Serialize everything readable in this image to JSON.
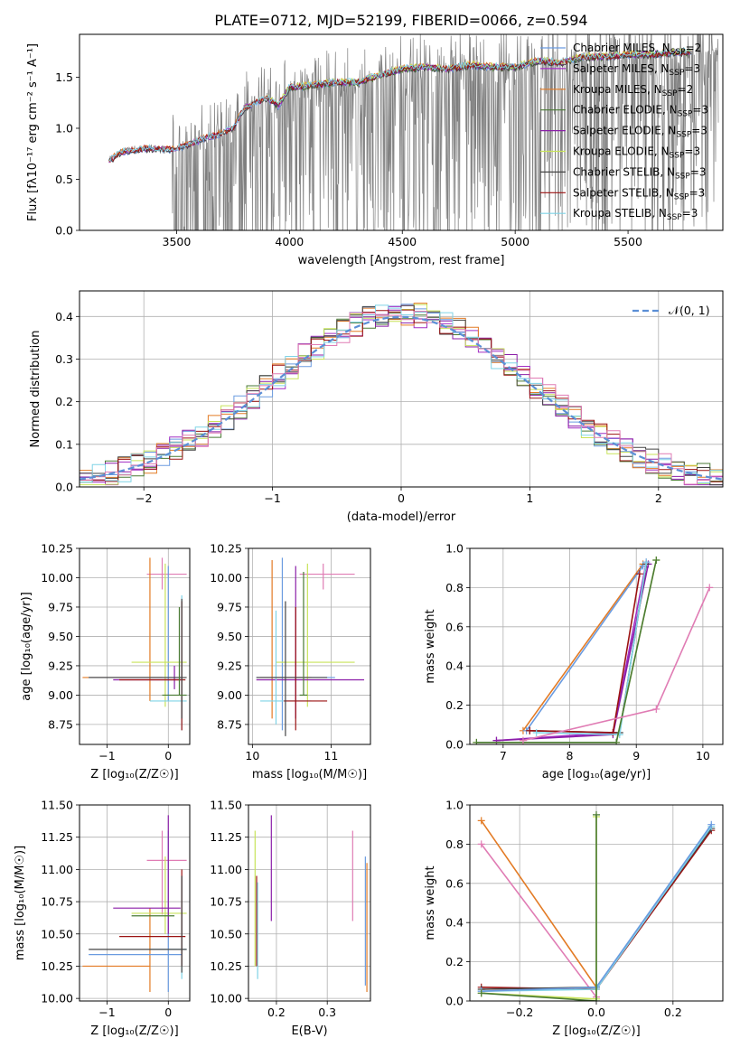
{
  "figure": {
    "title": "PLATE=0712, MJD=52199, FIBERID=0066, z=0.594"
  },
  "colors": {
    "Chabrier MILES": "#6a9be0",
    "Salpeter MILES": "#a22fc4",
    "Kroupa MILES": "#e37b25",
    "Chabrier ELODIE": "#4a7a34",
    "Salpeter ELODIE": "#8b1fa8",
    "Kroupa ELODIE": "#c8e35a",
    "Chabrier STELIB": "#444444",
    "Salpeter STELIB": "#9b1212",
    "Kroupa STELIB": "#7fd3e6",
    "pink": "#e07cb4",
    "data": "#7f7f7f",
    "normal": "#5b8fd6"
  },
  "chart_data": [
    {
      "id": "spectrum",
      "type": "line",
      "title": "PLATE=0712, MJD=52199, FIBERID=0066, z=0.594",
      "xlabel": "wavelength [Angstrom, rest frame]",
      "ylabel": "Flux [fλ10⁻¹⁷ erg cm⁻² s⁻¹ A⁻¹]",
      "xlim": [
        3070,
        5920
      ],
      "ylim": [
        0,
        1.92
      ],
      "xticks": [
        "3500",
        "4000",
        "4500",
        "5000",
        "5500"
      ],
      "yticks": [
        "0.0",
        "0.5",
        "1.0",
        "1.5"
      ],
      "legend_placement": "right",
      "legend": [
        {
          "label": "Chabrier MILES, N",
          "sub": "SSP",
          "suffix": "=2",
          "color": "Chabrier MILES"
        },
        {
          "label": "Salpeter MILES, N",
          "sub": "SSP",
          "suffix": "=3",
          "color": "Salpeter MILES"
        },
        {
          "label": "Kroupa MILES, N",
          "sub": "SSP",
          "suffix": "=2",
          "color": "Kroupa MILES"
        },
        {
          "label": "Chabrier ELODIE, N",
          "sub": "SSP",
          "suffix": "=3",
          "color": "Chabrier ELODIE"
        },
        {
          "label": "Salpeter ELODIE, N",
          "sub": "SSP",
          "suffix": "=3",
          "color": "Salpeter ELODIE"
        },
        {
          "label": "Kroupa ELODIE, N",
          "sub": "SSP",
          "suffix": "=3",
          "color": "Kroupa ELODIE"
        },
        {
          "label": "Chabrier STELIB, N",
          "sub": "SSP",
          "suffix": "=3",
          "color": "Chabrier STELIB"
        },
        {
          "label": "Salpeter STELIB, N",
          "sub": "SSP",
          "suffix": "=3",
          "color": "Salpeter STELIB"
        },
        {
          "label": "Kroupa STELIB, N",
          "sub": "SSP",
          "suffix": "=3",
          "color": "Kroupa STELIB"
        }
      ],
      "model_continuum": [
        [
          3200,
          0.68
        ],
        [
          3250,
          0.76
        ],
        [
          3300,
          0.79
        ],
        [
          3350,
          0.8
        ],
        [
          3400,
          0.8
        ],
        [
          3450,
          0.79
        ],
        [
          3500,
          0.8
        ],
        [
          3550,
          0.84
        ],
        [
          3600,
          0.88
        ],
        [
          3650,
          0.92
        ],
        [
          3700,
          0.95
        ],
        [
          3750,
          1.0
        ],
        [
          3800,
          1.2
        ],
        [
          3850,
          1.25
        ],
        [
          3900,
          1.3
        ],
        [
          3950,
          1.22
        ],
        [
          4000,
          1.4
        ],
        [
          4100,
          1.42
        ],
        [
          4200,
          1.45
        ],
        [
          4300,
          1.45
        ],
        [
          4400,
          1.52
        ],
        [
          4500,
          1.58
        ],
        [
          4600,
          1.6
        ],
        [
          4700,
          1.58
        ],
        [
          4800,
          1.62
        ],
        [
          4900,
          1.6
        ],
        [
          5000,
          1.6
        ],
        [
          5100,
          1.66
        ],
        [
          5200,
          1.64
        ],
        [
          5300,
          1.7
        ],
        [
          5400,
          1.7
        ],
        [
          5500,
          1.72
        ],
        [
          5600,
          1.72
        ],
        [
          5700,
          1.74
        ],
        [
          5780,
          1.75
        ]
      ],
      "data_noise_from": 3480
    },
    {
      "id": "residuals",
      "type": "step",
      "xlabel": "(data-model)/error",
      "ylabel": "Normed distribution",
      "xlim": [
        -2.5,
        2.5
      ],
      "ylim": [
        0,
        0.46
      ],
      "xticks": [
        "−2",
        "−1",
        "0",
        "1",
        "2"
      ],
      "yticks": [
        "0.0",
        "0.1",
        "0.2",
        "0.3",
        "0.4"
      ],
      "legend_placement": "top-right",
      "normal_label": "𝒩(0, 1)"
    },
    {
      "id": "age_vs_Z",
      "type": "errorbar",
      "xlabel": "Z [log₁₀(Z/Z☉)]",
      "ylabel": "age  [log₁₀(age/yr)]",
      "xlim": [
        -1.45,
        0.35
      ],
      "ylim": [
        8.58,
        10.25
      ],
      "xticks": [
        "−1",
        "0"
      ],
      "yticks": [
        "8.75",
        "9.00",
        "9.25",
        "9.50",
        "9.75",
        "10.00",
        "10.25"
      ],
      "points": [
        {
          "x": -0.1,
          "y": 10.03,
          "xe": [
            -0.35,
            0.3
          ],
          "ye": [
            9.9,
            10.17
          ],
          "c": "pink"
        },
        {
          "x": -0.3,
          "y": 9.15,
          "xe": [
            -1.4,
            -0.1
          ],
          "ye": [
            8.95,
            10.17
          ],
          "c": "Kroupa MILES"
        },
        {
          "x": 0.0,
          "y": 9.15,
          "xe": [
            -1.3,
            0.22
          ],
          "ye": [
            8.95,
            10.1
          ],
          "c": "Chabrier MILES"
        },
        {
          "x": -0.05,
          "y": 9.28,
          "xe": [
            -0.6,
            0.3
          ],
          "ye": [
            8.9,
            10.12
          ],
          "c": "Kroupa ELODIE"
        },
        {
          "x": 0.1,
          "y": 9.13,
          "xe": [
            -0.9,
            0.2
          ],
          "ye": [
            9.05,
            9.25
          ],
          "c": "Salpeter ELODIE"
        },
        {
          "x": 0.22,
          "y": 8.95,
          "xe": [
            -0.3,
            0.3
          ],
          "ye": [
            8.7,
            9.85
          ],
          "c": "Kroupa STELIB"
        },
        {
          "x": 0.22,
          "y": 9.13,
          "xe": [
            -0.8,
            0.28
          ],
          "ye": [
            8.7,
            9.8
          ],
          "c": "Salpeter STELIB"
        },
        {
          "x": 0.22,
          "y": 9.15,
          "xe": [
            -1.3,
            0.3
          ],
          "ye": [
            8.8,
            9.82
          ],
          "c": "Chabrier STELIB"
        },
        {
          "x": 0.18,
          "y": 9.0,
          "xe": [
            -0.1,
            0.3
          ],
          "ye": [
            9.0,
            9.75
          ],
          "c": "Chabrier ELODIE"
        }
      ]
    },
    {
      "id": "age_vs_mass",
      "type": "errorbar",
      "xlabel": "mass [log₁₀(M/M☉)]",
      "ylabel": "",
      "xlim": [
        9.95,
        11.5
      ],
      "ylim": [
        8.58,
        10.25
      ],
      "xticks": [
        "10",
        "11"
      ],
      "yticks": [
        "8.75",
        "9.00",
        "9.25",
        "9.50",
        "9.75",
        "10.00",
        "10.25"
      ],
      "points": [
        {
          "x": 10.9,
          "y": 10.03,
          "xe": [
            10.6,
            11.3
          ],
          "ye": [
            9.9,
            10.12
          ],
          "c": "pink"
        },
        {
          "x": 10.25,
          "y": 9.15,
          "xe": [
            10.1,
            10.75
          ],
          "ye": [
            8.8,
            10.15
          ],
          "c": "Kroupa MILES"
        },
        {
          "x": 10.38,
          "y": 9.15,
          "xe": [
            10.05,
            11.05
          ],
          "ye": [
            8.7,
            10.17
          ],
          "c": "Chabrier MILES"
        },
        {
          "x": 10.7,
          "y": 9.28,
          "xe": [
            10.3,
            11.3
          ],
          "ye": [
            8.9,
            10.12
          ],
          "c": "Kroupa ELODIE"
        },
        {
          "x": 10.55,
          "y": 9.13,
          "xe": [
            10.05,
            11.42
          ],
          "ye": [
            8.8,
            10.1
          ],
          "c": "Salpeter ELODIE"
        },
        {
          "x": 10.3,
          "y": 8.95,
          "xe": [
            10.1,
            10.75
          ],
          "ye": [
            8.75,
            9.72
          ],
          "c": "Kroupa STELIB"
        },
        {
          "x": 10.55,
          "y": 8.95,
          "xe": [
            10.4,
            10.95
          ],
          "ye": [
            8.7,
            9.75
          ],
          "c": "Salpeter STELIB"
        },
        {
          "x": 10.42,
          "y": 9.15,
          "xe": [
            10.05,
            10.95
          ],
          "ye": [
            8.65,
            9.8
          ],
          "c": "Chabrier STELIB"
        },
        {
          "x": 10.65,
          "y": 9.0,
          "xe": [
            10.6,
            10.7
          ],
          "ye": [
            9.0,
            10.05
          ],
          "c": "Chabrier ELODIE"
        }
      ]
    },
    {
      "id": "weight_vs_age",
      "type": "line",
      "xlabel": "age  [log₁₀(age/yr)]",
      "ylabel": "mass weight",
      "xlim": [
        6.5,
        10.3
      ],
      "ylim": [
        0,
        1.0
      ],
      "xticks": [
        "7",
        "8",
        "9",
        "10"
      ],
      "yticks": [
        "0.0",
        "0.2",
        "0.4",
        "0.6",
        "0.8",
        "1.0"
      ],
      "series": [
        {
          "c": "Kroupa MILES",
          "pts": [
            [
              7.3,
              0.07
            ],
            [
              9.1,
              0.92
            ]
          ]
        },
        {
          "c": "Chabrier MILES",
          "pts": [
            [
              7.35,
              0.07
            ],
            [
              9.1,
              0.91
            ]
          ]
        },
        {
          "c": "Salpeter MILES",
          "pts": [
            [
              6.9,
              0.02
            ],
            [
              8.65,
              0.06
            ],
            [
              9.15,
              0.93
            ]
          ]
        },
        {
          "c": "Salpeter ELODIE",
          "pts": [
            [
              6.9,
              0.02
            ],
            [
              8.65,
              0.05
            ],
            [
              9.18,
              0.92
            ]
          ]
        },
        {
          "c": "Chabrier STELIB",
          "pts": [
            [
              7.4,
              0.07
            ],
            [
              8.75,
              0.06
            ],
            [
              9.15,
              0.92
            ]
          ]
        },
        {
          "c": "Salpeter STELIB",
          "pts": [
            [
              7.4,
              0.07
            ],
            [
              8.65,
              0.06
            ],
            [
              9.05,
              0.87
            ]
          ]
        },
        {
          "c": "Kroupa STELIB",
          "pts": [
            [
              7.5,
              0.06
            ],
            [
              8.75,
              0.05
            ],
            [
              9.15,
              0.93
            ]
          ]
        },
        {
          "c": "Kroupa ELODIE",
          "pts": [
            [
              6.6,
              0.01
            ],
            [
              8.7,
              0.01
            ],
            [
              9.3,
              0.94
            ]
          ]
        },
        {
          "c": "Chabrier ELODIE",
          "pts": [
            [
              6.6,
              0.01
            ],
            [
              8.7,
              0.01
            ],
            [
              9.3,
              0.94
            ]
          ]
        },
        {
          "c": "pink",
          "pts": [
            [
              7.3,
              0.02
            ],
            [
              9.3,
              0.18
            ],
            [
              10.1,
              0.8
            ]
          ]
        }
      ]
    },
    {
      "id": "mass_vs_Z",
      "type": "errorbar",
      "xlabel": "Z [log₁₀(Z/Z☉)]",
      "ylabel": "mass [log₁₀(M/M☉)]",
      "xlim": [
        -1.45,
        0.35
      ],
      "ylim": [
        9.98,
        11.5
      ],
      "xticks": [
        "−1",
        "0"
      ],
      "yticks": [
        "10.00",
        "10.25",
        "10.50",
        "10.75",
        "11.00",
        "11.25",
        "11.50"
      ],
      "points": [
        {
          "x": -0.1,
          "y": 11.07,
          "xe": [
            -0.35,
            0.3
          ],
          "ye": [
            10.65,
            11.3
          ],
          "c": "pink"
        },
        {
          "x": -0.3,
          "y": 10.25,
          "xe": [
            -1.4,
            -0.3
          ],
          "ye": [
            10.05,
            10.7
          ],
          "c": "Kroupa MILES"
        },
        {
          "x": 0.0,
          "y": 10.34,
          "xe": [
            -1.3,
            0.22
          ],
          "ye": [
            10.05,
            11.3
          ],
          "c": "Chabrier MILES"
        },
        {
          "x": -0.05,
          "y": 10.66,
          "xe": [
            -0.6,
            0.3
          ],
          "ye": [
            10.5,
            11.1
          ],
          "c": "Kroupa ELODIE"
        },
        {
          "x": 0.0,
          "y": 10.7,
          "xe": [
            -0.9,
            0.2
          ],
          "ye": [
            10.5,
            11.42
          ],
          "c": "Salpeter ELODIE"
        },
        {
          "x": 0.22,
          "y": 10.38,
          "xe": [
            -0.3,
            0.3
          ],
          "ye": [
            10.15,
            10.95
          ],
          "c": "Kroupa STELIB"
        },
        {
          "x": 0.22,
          "y": 10.48,
          "xe": [
            -0.8,
            0.28
          ],
          "ye": [
            10.25,
            11.0
          ],
          "c": "Salpeter STELIB"
        },
        {
          "x": 0.22,
          "y": 10.38,
          "xe": [
            -1.3,
            0.3
          ],
          "ye": [
            10.2,
            10.95
          ],
          "c": "Chabrier STELIB"
        },
        {
          "x": 0.18,
          "y": 10.64,
          "xe": [
            -0.6,
            0.1
          ],
          "ye": [
            10.64,
            10.64
          ],
          "c": "Chabrier ELODIE"
        }
      ]
    },
    {
      "id": "mass_vs_ebv",
      "type": "errorbar",
      "xlabel": "E(B-V)",
      "ylabel": "",
      "xlim": [
        0.145,
        0.385
      ],
      "ylim": [
        9.98,
        11.5
      ],
      "xticks": [
        "0.2",
        "0.3"
      ],
      "yticks": [
        "10.00",
        "10.25",
        "10.50",
        "10.75",
        "11.00",
        "11.25",
        "11.50"
      ],
      "points": [
        {
          "x": 0.158,
          "y": 10.8,
          "ye": [
            10.25,
            11.3
          ],
          "c": "Kroupa ELODIE"
        },
        {
          "x": 0.161,
          "y": 10.6,
          "ye": [
            10.25,
            10.95
          ],
          "c": "Salpeter STELIB"
        },
        {
          "x": 0.163,
          "y": 10.6,
          "ye": [
            10.15,
            10.9
          ],
          "c": "Kroupa STELIB"
        },
        {
          "x": 0.19,
          "y": 11.0,
          "ye": [
            10.6,
            11.42
          ],
          "c": "Salpeter ELODIE"
        },
        {
          "x": 0.35,
          "y": 11.07,
          "ye": [
            10.6,
            11.3
          ],
          "c": "pink"
        },
        {
          "x": 0.375,
          "y": 10.6,
          "ye": [
            10.1,
            11.1
          ],
          "c": "Chabrier MILES"
        },
        {
          "x": 0.378,
          "y": 10.6,
          "ye": [
            10.05,
            11.05
          ],
          "c": "Kroupa MILES"
        }
      ]
    },
    {
      "id": "weight_vs_Z",
      "type": "line",
      "xlabel": "Z [log₁₀(Z/Z☉)]",
      "ylabel": "mass weight",
      "xlim": [
        -0.33,
        0.33
      ],
      "ylim": [
        0,
        1.0
      ],
      "xticks": [
        "−0.2",
        "0.0",
        "0.2"
      ],
      "yticks": [
        "0.0",
        "0.2",
        "0.4",
        "0.6",
        "0.8",
        "1.0"
      ],
      "series": [
        {
          "c": "Kroupa MILES",
          "pts": [
            [
              -0.3,
              0.92
            ],
            [
              0.0,
              0.07
            ]
          ]
        },
        {
          "c": "pink",
          "pts": [
            [
              -0.3,
              0.8
            ],
            [
              0.0,
              0.02
            ]
          ]
        },
        {
          "c": "Salpeter STELIB",
          "pts": [
            [
              -0.3,
              0.07
            ],
            [
              0.0,
              0.06
            ],
            [
              0.3,
              0.87
            ]
          ]
        },
        {
          "c": "Chabrier STELIB",
          "pts": [
            [
              -0.3,
              0.06
            ],
            [
              0.0,
              0.07
            ],
            [
              0.3,
              0.88
            ]
          ]
        },
        {
          "c": "Kroupa STELIB",
          "pts": [
            [
              -0.3,
              0.05
            ],
            [
              0.0,
              0.06
            ],
            [
              0.3,
              0.89
            ]
          ]
        },
        {
          "c": "Chabrier MILES",
          "pts": [
            [
              -0.3,
              0.05
            ],
            [
              0.0,
              0.07
            ],
            [
              0.3,
              0.9
            ]
          ]
        },
        {
          "c": "Kroupa ELODIE",
          "pts": [
            [
              -0.3,
              0.04
            ],
            [
              0.0,
              0.01
            ],
            [
              0.0,
              0.94
            ]
          ]
        },
        {
          "c": "Chabrier ELODIE",
          "pts": [
            [
              -0.3,
              0.04
            ],
            [
              0.0,
              0.0
            ],
            [
              0.0,
              0.95
            ]
          ]
        }
      ]
    }
  ]
}
